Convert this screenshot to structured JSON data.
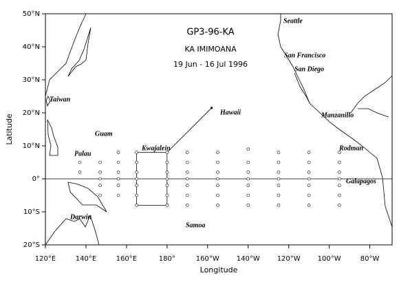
{
  "chart_data": {
    "type": "map",
    "title": "GP3-96-KA",
    "subtitle": "KA IMIMOANA",
    "dates": "19 Jun - 16 Jul 1996",
    "x_label": "Longitude",
    "y_label": "Latitude",
    "xlim": [
      120,
      291
    ],
    "ylim": [
      -20,
      50
    ],
    "xticks": [
      {
        "value": 120,
        "label": "120°E"
      },
      {
        "value": 140,
        "label": "140°E"
      },
      {
        "value": 160,
        "label": "160°E"
      },
      {
        "value": 180,
        "label": "180°"
      },
      {
        "value": 200,
        "label": "160°W"
      },
      {
        "value": 220,
        "label": "140°W"
      },
      {
        "value": 240,
        "label": "120°W"
      },
      {
        "value": 260,
        "label": "100°W"
      },
      {
        "value": 280,
        "label": "80°W"
      }
    ],
    "yticks": [
      {
        "value": -20,
        "label": "20°S"
      },
      {
        "value": -10,
        "label": "10°S"
      },
      {
        "value": 0,
        "label": "0°"
      },
      {
        "value": 10,
        "label": "10°N"
      },
      {
        "value": 20,
        "label": "20°N"
      },
      {
        "value": 30,
        "label": "30°N"
      },
      {
        "value": 40,
        "label": "40°N"
      },
      {
        "value": 50,
        "label": "50°N"
      }
    ],
    "places": [
      "Seattle",
      "San Francisco",
      "San Diego",
      "Manzanillo",
      "Rodman",
      "Galapagos",
      "Hawaii",
      "Kwajalein",
      "Guam",
      "Palau",
      "Taiwan",
      "Darwin",
      "Samoa"
    ],
    "stations": [
      {
        "lon": 137,
        "lats": [
          5,
          2
        ]
      },
      {
        "lon": 147,
        "lats": [
          5,
          2,
          0,
          -2,
          -5
        ]
      },
      {
        "lon": 156,
        "lats": [
          8,
          5,
          2,
          0,
          -2,
          -5
        ]
      },
      {
        "lon": 165,
        "lats": [
          8,
          5,
          2,
          0,
          -2,
          -5,
          -8
        ]
      },
      {
        "lon": 180,
        "lats": [
          8,
          5,
          2,
          0,
          -2,
          -5,
          -8
        ]
      },
      {
        "lon": 190,
        "lats": [
          8,
          5,
          2,
          0,
          -2,
          -5,
          -8
        ]
      },
      {
        "lon": 205,
        "lats": [
          8,
          5,
          2,
          0,
          -2,
          -5,
          -8
        ]
      },
      {
        "lon": 220,
        "lats": [
          9,
          5,
          2,
          0,
          -2,
          -5,
          -8
        ]
      },
      {
        "lon": 235,
        "lats": [
          8,
          5,
          2,
          0,
          -2,
          -5,
          -8
        ]
      },
      {
        "lon": 250,
        "lats": [
          8,
          5,
          2,
          0,
          -2,
          -5,
          -8
        ]
      },
      {
        "lon": 265,
        "lats": [
          8,
          5,
          2,
          0,
          -2,
          -5,
          -8
        ]
      }
    ],
    "track": {
      "lon": [
        202,
        180,
        165,
        165,
        180,
        180
      ],
      "lat": [
        21.5,
        8,
        8,
        -8,
        -8,
        8
      ]
    }
  }
}
